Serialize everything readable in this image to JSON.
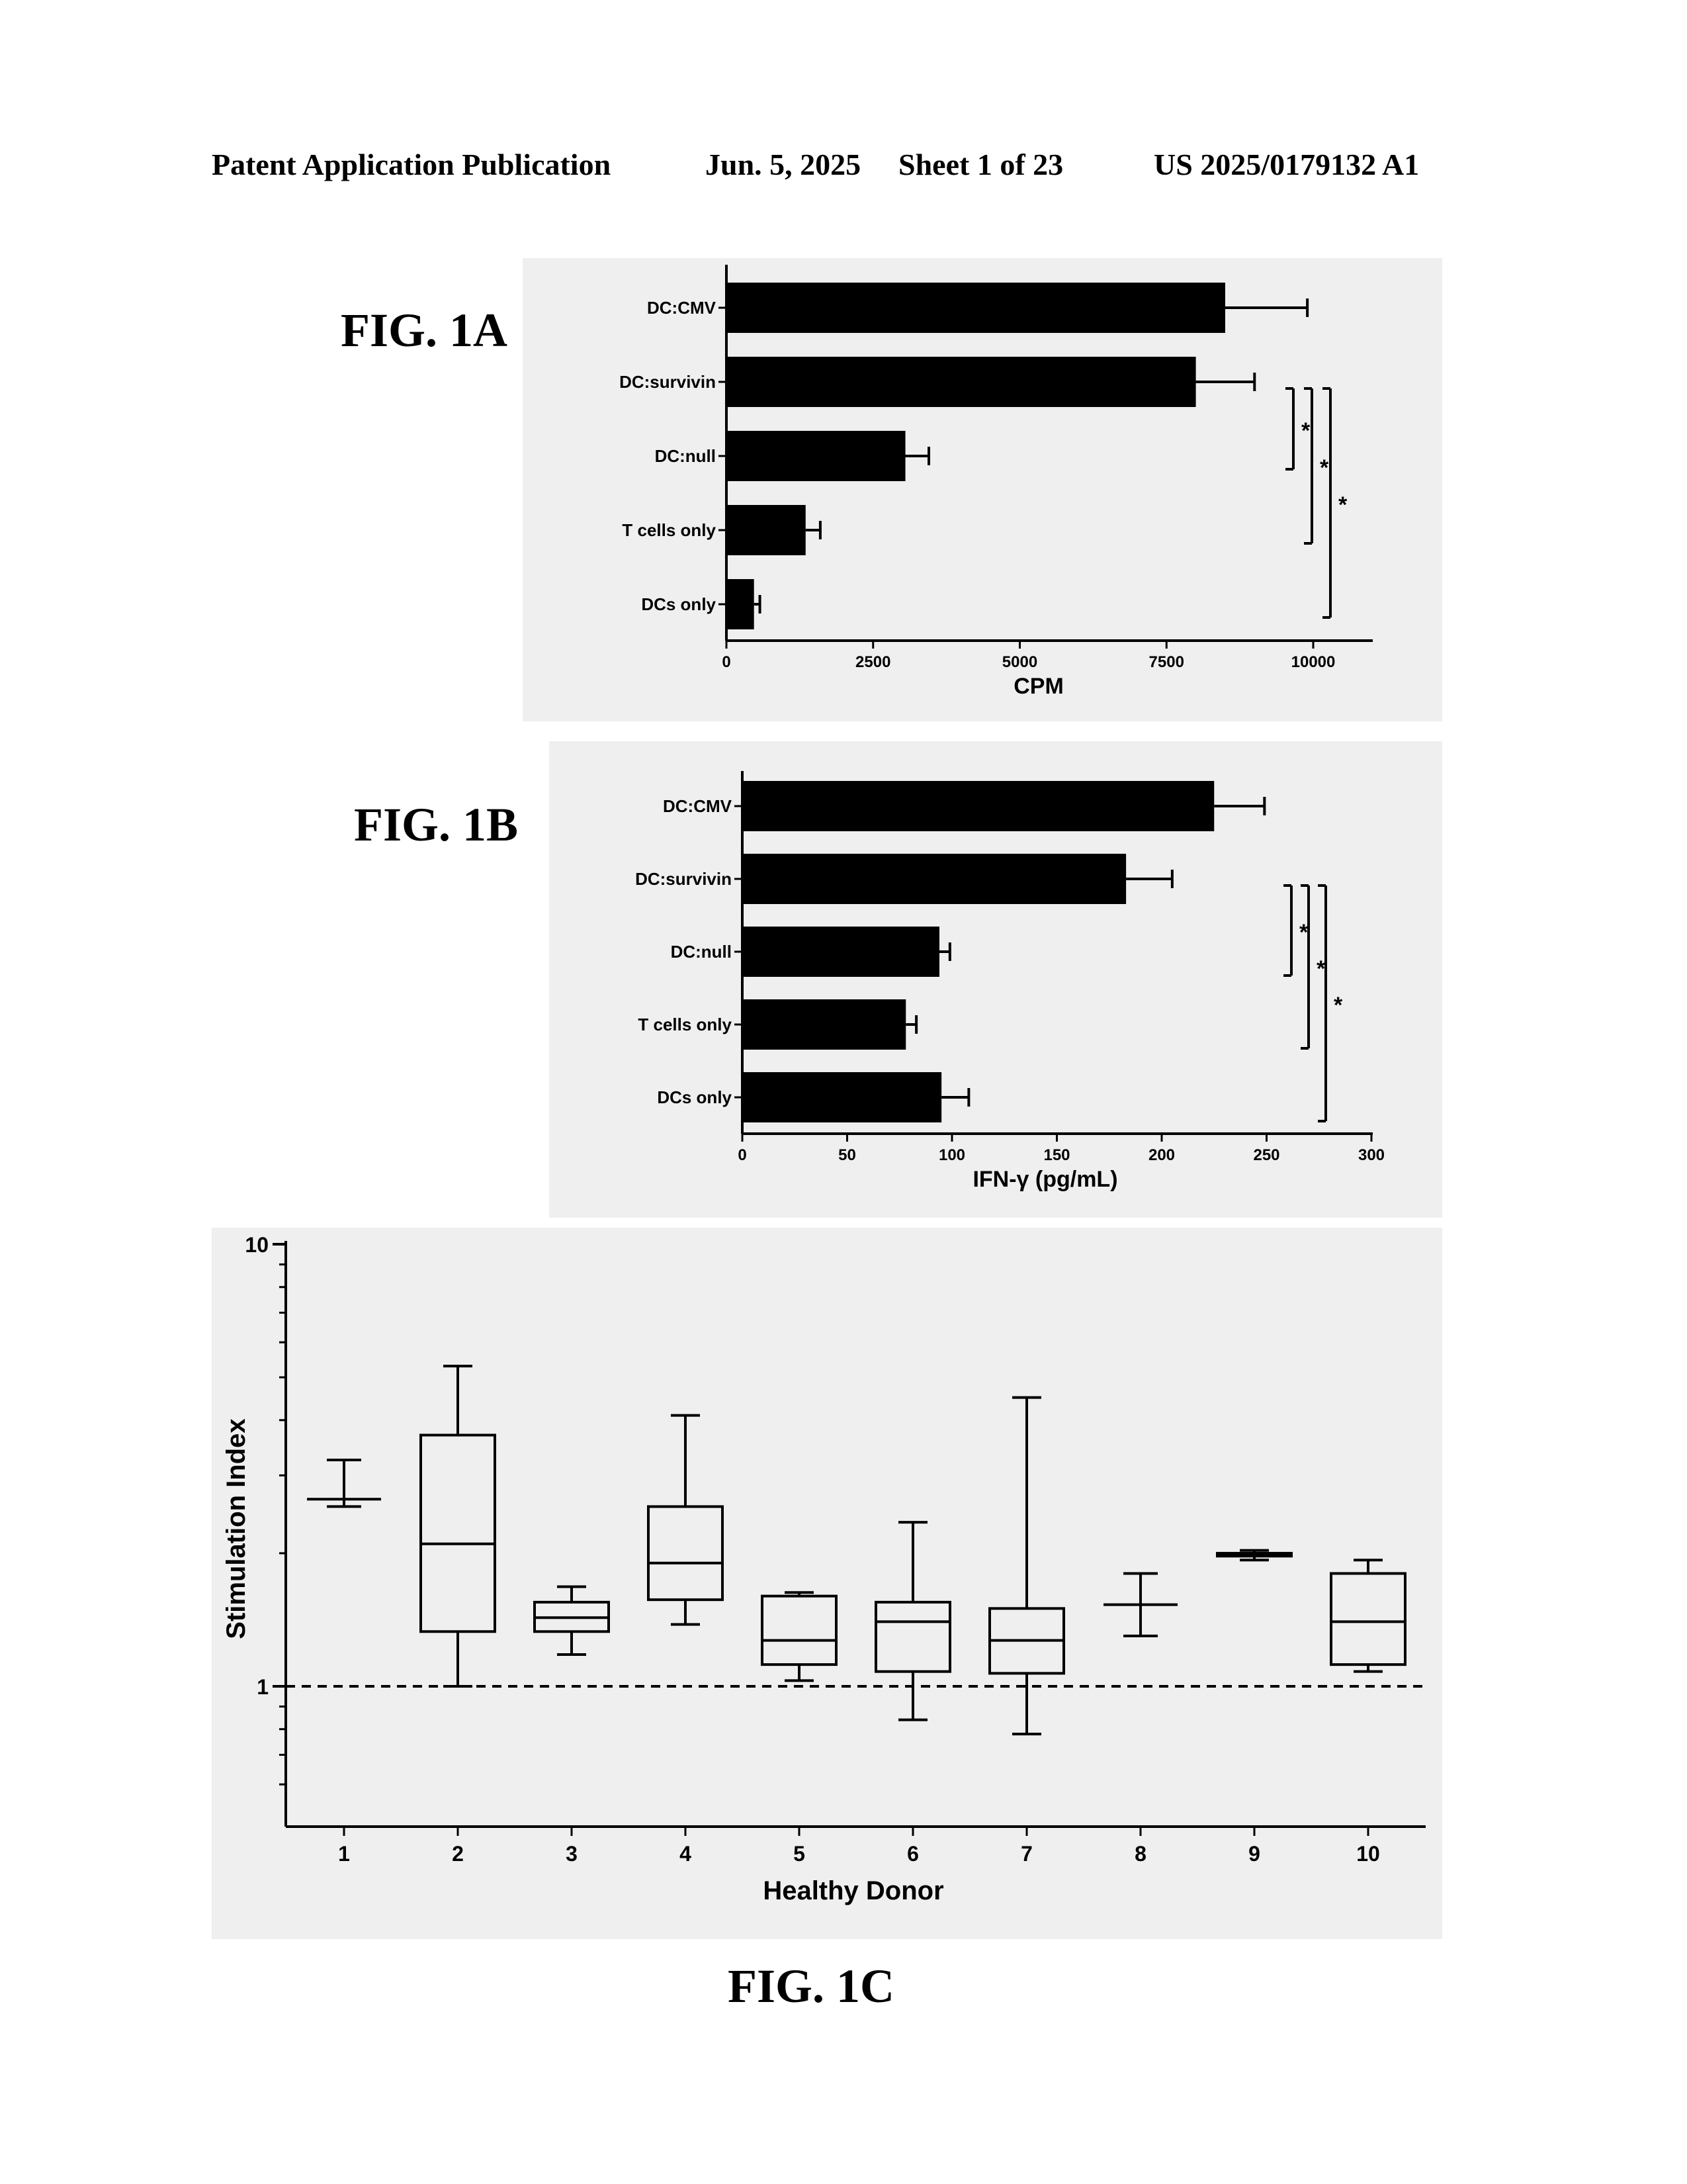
{
  "header": {
    "left": "Patent Application Publication",
    "date": "Jun. 5, 2025",
    "sheet": "Sheet 1 of 23",
    "number": "US 2025/0179132 A1"
  },
  "figures": {
    "a": "FIG. 1A",
    "b": "FIG. 1B",
    "c": "FIG. 1C"
  },
  "chart_data": [
    {
      "type": "bar",
      "orientation": "horizontal",
      "categories": [
        "DC:CMV",
        "DC:survivin",
        "DC:null",
        "T cells only",
        "DCs only"
      ],
      "values": [
        8500,
        8000,
        3050,
        1350,
        470
      ],
      "errors": [
        1400,
        1000,
        400,
        250,
        100
      ],
      "xlabel": "CPM",
      "xlim": [
        0,
        11000
      ],
      "ticks": [
        0,
        2500,
        5000,
        7500,
        10000
      ],
      "tick_labels": [
        "0",
        "2500",
        "5000",
        "7500",
        "10000"
      ],
      "significance": [
        {
          "from": "DC:survivin",
          "to": "DC:null",
          "label": "*"
        },
        {
          "from": "DC:survivin",
          "to": "T cells only",
          "label": "*"
        },
        {
          "from": "DC:survivin",
          "to": "DCs only",
          "label": "*"
        }
      ]
    },
    {
      "type": "bar",
      "orientation": "horizontal",
      "categories": [
        "DC:CMV",
        "DC:survivin",
        "DC:null",
        "T cells only",
        "DCs only"
      ],
      "values": [
        225,
        183,
        94,
        78,
        95
      ],
      "errors": [
        24,
        22,
        5,
        5,
        13
      ],
      "xlabel": "IFN-γ (pg/mL)",
      "xlim": [
        0,
        300
      ],
      "ticks": [
        0,
        50,
        100,
        150,
        200,
        250,
        300
      ],
      "tick_labels": [
        "0",
        "50",
        "100",
        "150",
        "200",
        "250",
        "300"
      ],
      "significance": [
        {
          "from": "DC:survivin",
          "to": "DC:null",
          "label": "*"
        },
        {
          "from": "DC:survivin",
          "to": "T cells only",
          "label": "*"
        },
        {
          "from": "DC:survivin",
          "to": "DCs only",
          "label": "*"
        }
      ]
    },
    {
      "type": "box",
      "categories": [
        "1",
        "2",
        "3",
        "4",
        "5",
        "6",
        "7",
        "8",
        "9",
        "10"
      ],
      "boxes": [
        {
          "min": 2.55,
          "q1": 2.65,
          "median": 2.65,
          "q3": 2.65,
          "max": 3.25
        },
        {
          "min": 1.0,
          "q1": 1.33,
          "median": 2.1,
          "q3": 3.7,
          "max": 5.3
        },
        {
          "min": 1.18,
          "q1": 1.33,
          "median": 1.43,
          "q3": 1.55,
          "max": 1.68
        },
        {
          "min": 1.38,
          "q1": 1.57,
          "median": 1.9,
          "q3": 2.55,
          "max": 4.1
        },
        {
          "min": 1.03,
          "q1": 1.12,
          "median": 1.27,
          "q3": 1.6,
          "max": 1.63
        },
        {
          "min": 0.84,
          "q1": 1.08,
          "median": 1.4,
          "q3": 1.55,
          "max": 2.35
        },
        {
          "min": 0.78,
          "q1": 1.07,
          "median": 1.27,
          "q3": 1.5,
          "max": 4.5
        },
        {
          "min": 1.3,
          "q1": 1.53,
          "median": 1.53,
          "q3": 1.53,
          "max": 1.8
        },
        {
          "min": 1.93,
          "q1": 1.97,
          "median": 1.99,
          "q3": 2.0,
          "max": 2.03
        },
        {
          "min": 1.08,
          "q1": 1.12,
          "median": 1.4,
          "q3": 1.8,
          "max": 1.93
        }
      ],
      "xlabel": "Healthy Donor",
      "ylabel": "Stimulation Index",
      "yscale": "log",
      "ylim": [
        0.6,
        10
      ],
      "ytick_labels": [
        "10",
        "1"
      ],
      "reference_line": {
        "y": 1,
        "style": "dashed"
      }
    }
  ]
}
